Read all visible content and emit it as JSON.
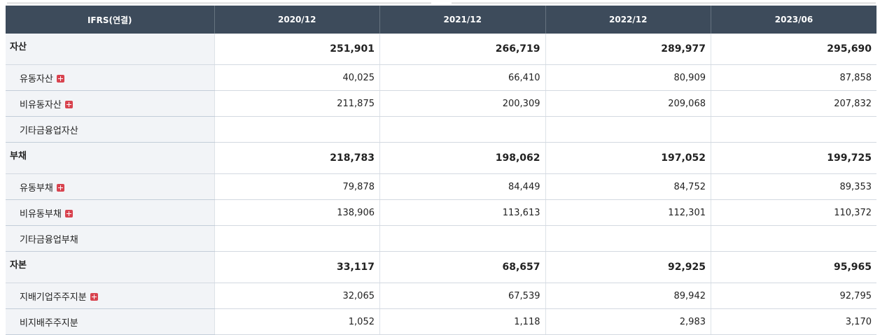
{
  "table": {
    "header": {
      "label": "IFRS(연결)",
      "periods": [
        "2020/12",
        "2021/12",
        "2022/12",
        "2023/06"
      ]
    },
    "rows": [
      {
        "label": "자산",
        "level": "major",
        "expandable": false,
        "values": [
          "251,901",
          "266,719",
          "289,977",
          "295,690"
        ]
      },
      {
        "label": "유동자산",
        "level": "sub",
        "expandable": true,
        "values": [
          "40,025",
          "66,410",
          "80,909",
          "87,858"
        ]
      },
      {
        "label": "비유동자산",
        "level": "sub",
        "expandable": true,
        "values": [
          "211,875",
          "200,309",
          "209,068",
          "207,832"
        ]
      },
      {
        "label": "기타금융업자산",
        "level": "sub",
        "expandable": false,
        "values": [
          "",
          "",
          "",
          ""
        ]
      },
      {
        "label": "부채",
        "level": "major",
        "expandable": false,
        "values": [
          "218,783",
          "198,062",
          "197,052",
          "199,725"
        ]
      },
      {
        "label": "유동부채",
        "level": "sub",
        "expandable": true,
        "values": [
          "79,878",
          "84,449",
          "84,752",
          "89,353"
        ]
      },
      {
        "label": "비유동부채",
        "level": "sub",
        "expandable": true,
        "values": [
          "138,906",
          "113,613",
          "112,301",
          "110,372"
        ]
      },
      {
        "label": "기타금융업부채",
        "level": "sub",
        "expandable": false,
        "values": [
          "",
          "",
          "",
          ""
        ]
      },
      {
        "label": "자본",
        "level": "major",
        "expandable": false,
        "values": [
          "33,117",
          "68,657",
          "92,925",
          "95,965"
        ]
      },
      {
        "label": "지배기업주주지분",
        "level": "sub",
        "expandable": true,
        "values": [
          "32,065",
          "67,539",
          "89,942",
          "92,795"
        ]
      },
      {
        "label": "비지배주주지분",
        "level": "sub",
        "expandable": false,
        "values": [
          "1,052",
          "1,118",
          "2,983",
          "3,170"
        ]
      }
    ]
  },
  "colors": {
    "header_bg": "#3d4b5b",
    "label_bg": "#f2f4f7",
    "expand_icon": "#d8434f"
  }
}
